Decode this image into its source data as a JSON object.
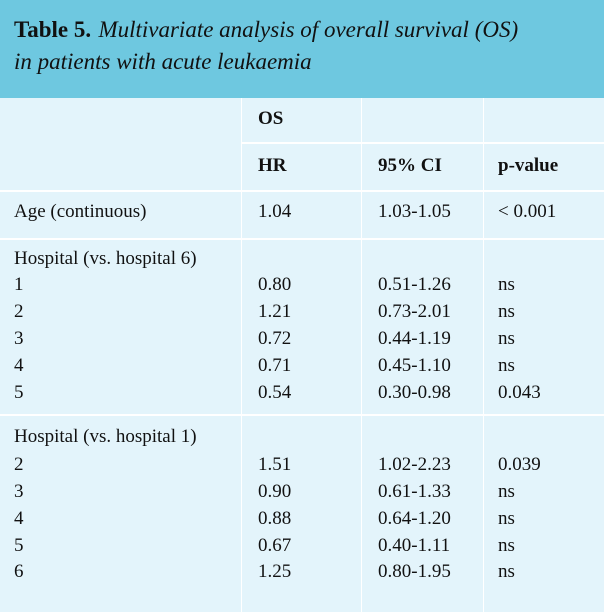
{
  "title": {
    "label": "Table 5.",
    "text_line1": "Multivariate analysis of overall survival (OS)",
    "text_line2": "in patients with acute leukaemia"
  },
  "header": {
    "group": "OS",
    "columns": [
      "HR",
      "95% CI",
      "p-value"
    ]
  },
  "rows": {
    "age": {
      "label": "Age (continuous)",
      "hr": "1.04",
      "ci": "1.03-1.05",
      "p": "< 0.001"
    },
    "section1": {
      "title": "Hospital (vs. hospital 6)",
      "rows": [
        {
          "label": "1",
          "hr": "0.80",
          "ci": "0.51-1.26",
          "p": "ns"
        },
        {
          "label": "2",
          "hr": "1.21",
          "ci": "0.73-2.01",
          "p": "ns"
        },
        {
          "label": "3",
          "hr": "0.72",
          "ci": "0.44-1.19",
          "p": "ns"
        },
        {
          "label": "4",
          "hr": "0.71",
          "ci": "0.45-1.10",
          "p": "ns"
        },
        {
          "label": "5",
          "hr": "0.54",
          "ci": "0.30-0.98",
          "p": "0.043"
        }
      ]
    },
    "section2": {
      "title": "Hospital (vs. hospital 1)",
      "rows": [
        {
          "label": "2",
          "hr": "1.51",
          "ci": "1.02-2.23",
          "p": "0.039"
        },
        {
          "label": "3",
          "hr": "0.90",
          "ci": "0.61-1.33",
          "p": "ns"
        },
        {
          "label": "4",
          "hr": "0.88",
          "ci": "0.64-1.20",
          "p": "ns"
        },
        {
          "label": "5",
          "hr": "0.67",
          "ci": "0.40-1.11",
          "p": "ns"
        },
        {
          "label": "6",
          "hr": "1.25",
          "ci": "0.80-1.95",
          "p": "ns"
        }
      ]
    }
  },
  "colors": {
    "title_bg": "#6ec8e0",
    "table_bg": "#e3f4fb",
    "rule": "#ffffff"
  }
}
